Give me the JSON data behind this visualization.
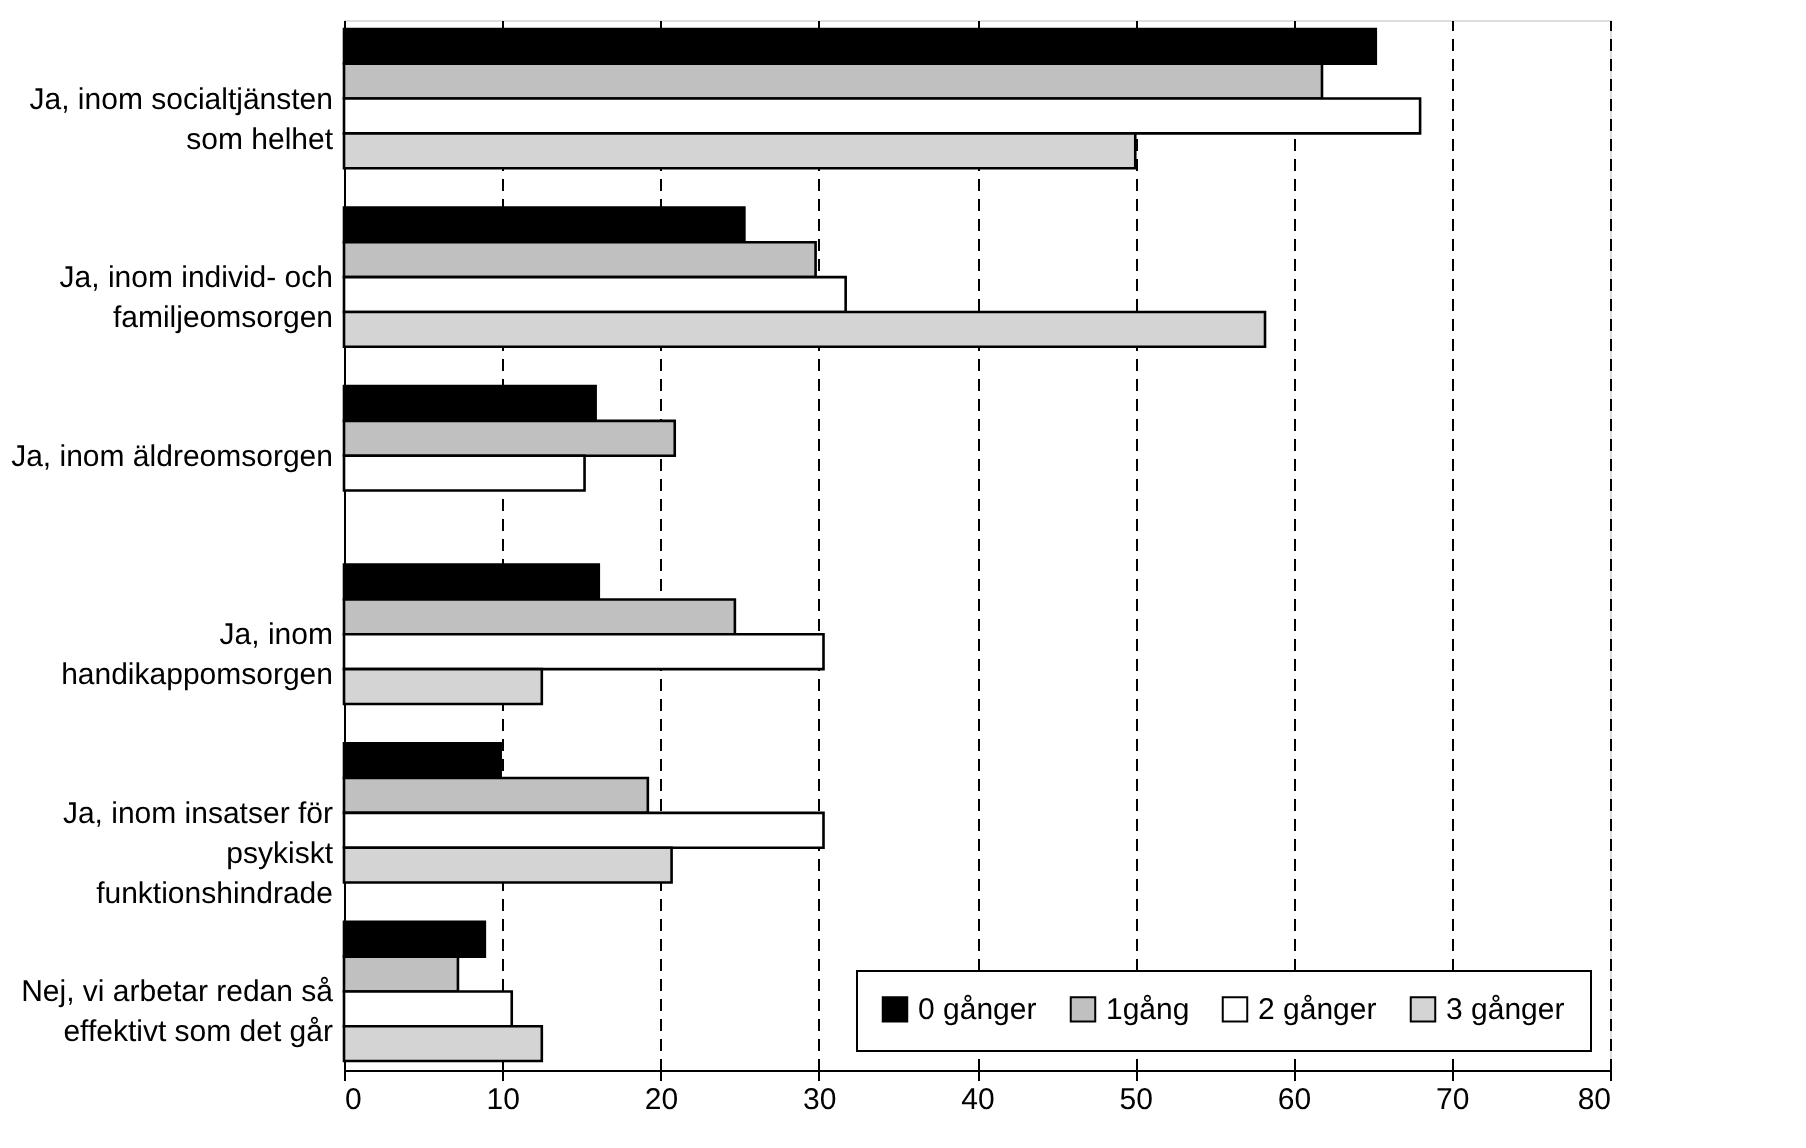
{
  "chart_data": {
    "type": "bar",
    "orientation": "horizontal",
    "categories": [
      "Ja, inom socialtjänsten som helhet",
      "Ja, inom individ- och familjeomsorgen",
      "Ja, inom äldreomsorgen",
      "Ja, inom handikappomsorgen",
      "Ja, inom insatser för psykiskt funktionshindrade",
      "Nej, vi arbetar redan så effektivt som det går"
    ],
    "series": [
      {
        "name": "0 gånger",
        "color": "#000000",
        "values": [
          65.2,
          25.3,
          15.9,
          16.1,
          9.9,
          8.9
        ]
      },
      {
        "name": "1gång",
        "color": "#c0c0c0",
        "values": [
          61.8,
          29.8,
          20.9,
          24.7,
          19.2,
          7.2
        ]
      },
      {
        "name": "2 gånger",
        "color": "#ffffff",
        "values": [
          68.0,
          31.7,
          15.2,
          30.3,
          30.3,
          10.6
        ]
      },
      {
        "name": "3 gånger",
        "color": "#d4d4d4",
        "values": [
          50.0,
          58.2,
          null,
          12.5,
          20.7,
          12.5
        ]
      }
    ],
    "xlim": [
      0,
      80
    ],
    "xticks": [
      0,
      10,
      20,
      30,
      40,
      50,
      60,
      70,
      80
    ],
    "grid": "x",
    "legend": "bottom right"
  }
}
